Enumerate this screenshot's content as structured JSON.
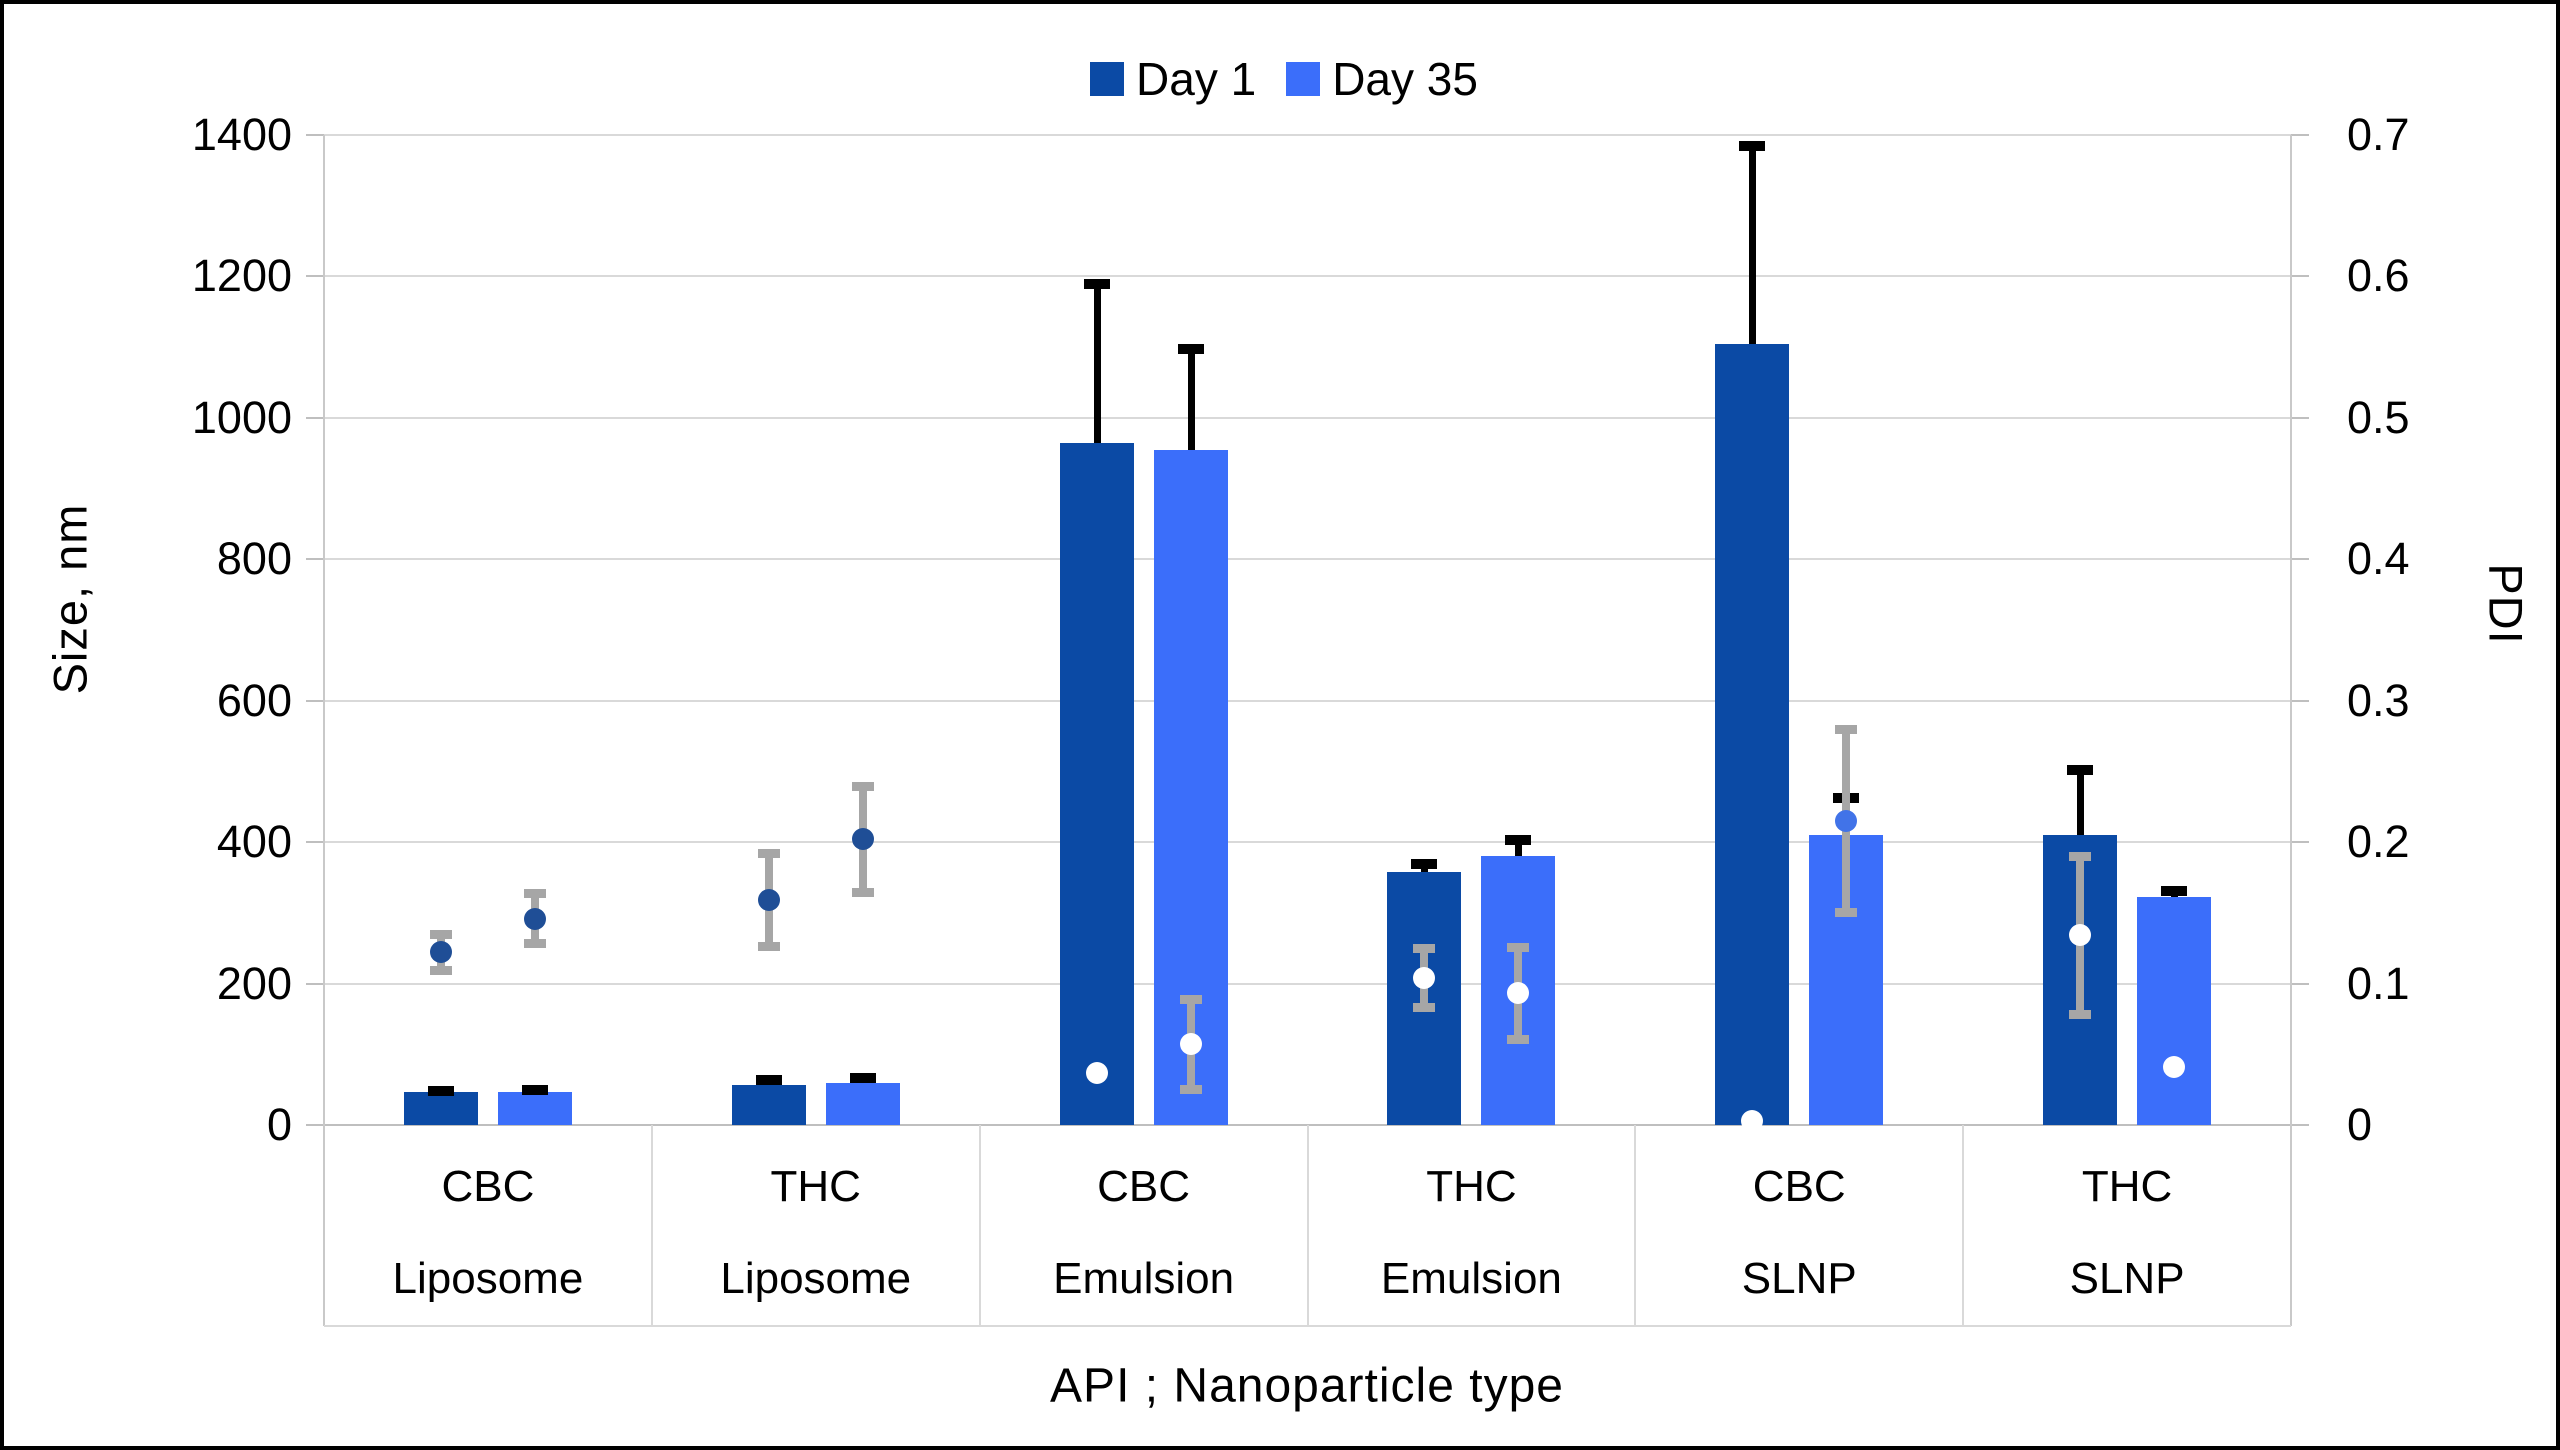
{
  "figure": {
    "legend": [
      {
        "label": "Day 1",
        "color": "#0B4AA5"
      },
      {
        "label": "Day 35",
        "color": "#3B6EFA"
      }
    ],
    "left_axis_title": "Size, nm",
    "right_axis_title": "PDI",
    "x_axis_title": "API ; Nanoparticle type"
  },
  "chart_data": {
    "type": "bar",
    "title": "",
    "categories": [
      {
        "api": "CBC",
        "nanoparticle": "Liposome"
      },
      {
        "api": "THC",
        "nanoparticle": "Liposome"
      },
      {
        "api": "CBC",
        "nanoparticle": "Emulsion"
      },
      {
        "api": "THC",
        "nanoparticle": "Emulsion"
      },
      {
        "api": "CBC",
        "nanoparticle": "SLNP"
      },
      {
        "api": "THC",
        "nanoparticle": "SLNP"
      }
    ],
    "left_axis": {
      "label": "Size, nm",
      "min": 0,
      "max": 1400,
      "step": 200,
      "tick_labels": [
        "0",
        "200",
        "400",
        "600",
        "800",
        "1000",
        "1200",
        "1400"
      ]
    },
    "right_axis": {
      "label": "PDI",
      "min": 0,
      "max": 0.7,
      "step": 0.1,
      "tick_labels": [
        "0",
        "0.1",
        "0.2",
        "0.3",
        "0.4",
        "0.5",
        "0.6",
        "0.7"
      ]
    },
    "xlabel": "API ; Nanoparticle type",
    "grid": true,
    "legend_position": "top-center",
    "series": [
      {
        "name": "Day 1",
        "axis": "left",
        "unit": "nm",
        "color": "#0B4AA5",
        "values": [
          46,
          57,
          965,
          358,
          1105,
          410
        ],
        "errors_plus": [
          8,
          12,
          230,
          17,
          285,
          97
        ],
        "error_color": "#000000"
      },
      {
        "name": "Day 35",
        "axis": "left",
        "unit": "nm",
        "color": "#3B6EFA",
        "values": [
          47,
          60,
          955,
          380,
          410,
          322
        ],
        "errors_plus": [
          8,
          12,
          148,
          28,
          58,
          15
        ],
        "error_color": "#000000"
      }
    ],
    "pdi_series": [
      {
        "name": "Day 1 PDI",
        "axis": "right",
        "values": [
          0.122,
          0.159,
          0.037,
          0.104,
          0.003,
          0.134
        ],
        "errors": [
          0.013,
          0.033,
          0,
          0.021,
          0,
          0.056
        ],
        "marker_colors": [
          "#1F4E96",
          "#1F4E96",
          "#FFFFFF",
          "#FFFFFF",
          "#FFFFFF",
          "#FFFFFF"
        ],
        "error_color": "#A6A6A6"
      },
      {
        "name": "Day 35 PDI",
        "axis": "right",
        "values": [
          0.146,
          0.202,
          0.057,
          0.093,
          0.215,
          0.041
        ],
        "errors": [
          0.018,
          0.038,
          0.032,
          0.033,
          0.065,
          0
        ],
        "marker_colors": [
          "#1F4E96",
          "#1F4E96",
          "#FFFFFF",
          "#FFFFFF",
          "#4173E8",
          "#FFFFFF"
        ],
        "error_color": "#A6A6A6"
      }
    ],
    "colors": {
      "gridline": "#D9D9D9",
      "axis_line": "#C9C9C9",
      "tick": "#BFBFBF",
      "bar_day1": "#0B4AA5",
      "bar_day35": "#3B6EFA",
      "pdi_dot_navy": "#1F4E96",
      "pdi_dot_white": "#FFFFFF",
      "pdi_dot_blue": "#4173E8",
      "pdi_error": "#A6A6A6",
      "bar_error": "#000000",
      "text": "#000000",
      "border": "#000000"
    }
  }
}
